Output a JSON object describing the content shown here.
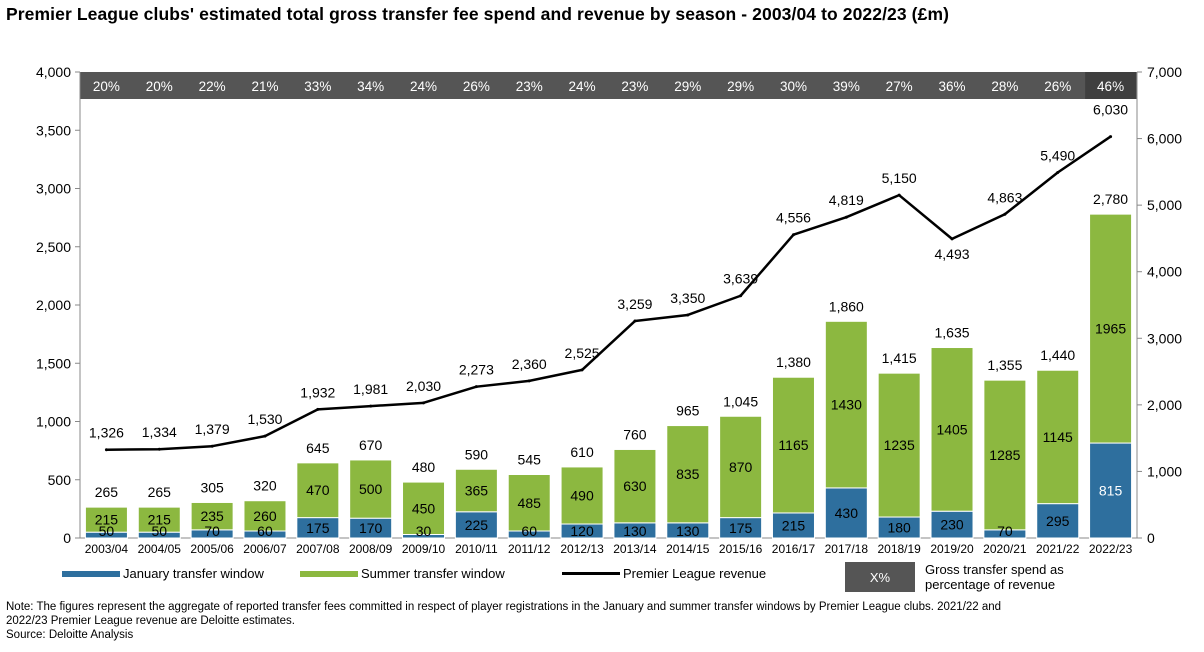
{
  "title": "Premier League clubs' estimated total gross transfer fee spend and revenue by season - 2003/04 to 2022/23 (£m)",
  "colors": {
    "january": "#2e6f9e",
    "summer": "#8cb840",
    "revenue": "#000000",
    "pct_band": "#555555",
    "pct_highlight": "#3f3f3f"
  },
  "chart_data": {
    "type": "bar",
    "stacked": true,
    "categories": [
      "2003/04",
      "2004/05",
      "2005/06",
      "2006/07",
      "2007/08",
      "2008/09",
      "2009/10",
      "2010/11",
      "2011/12",
      "2012/13",
      "2013/14",
      "2014/15",
      "2015/16",
      "2016/17",
      "2017/18",
      "2018/19",
      "2019/20",
      "2020/21",
      "2021/22",
      "2022/23"
    ],
    "series": [
      {
        "name": "January transfer window",
        "axis": "left",
        "values": [
          50,
          50,
          70,
          60,
          175,
          170,
          30,
          225,
          60,
          120,
          130,
          130,
          175,
          215,
          430,
          180,
          230,
          70,
          295,
          815
        ]
      },
      {
        "name": "Summer transfer window",
        "axis": "left",
        "values": [
          215,
          215,
          235,
          260,
          470,
          500,
          450,
          365,
          485,
          490,
          630,
          835,
          870,
          1165,
          1430,
          1235,
          1405,
          1285,
          1145,
          1965
        ]
      },
      {
        "name": "Premier League revenue",
        "type": "line",
        "axis": "right",
        "values": [
          1326,
          1334,
          1379,
          1530,
          1932,
          1981,
          2030,
          2273,
          2360,
          2525,
          3259,
          3350,
          3639,
          4556,
          4819,
          5150,
          4493,
          4863,
          5490,
          6030
        ]
      }
    ],
    "totals": [
      265,
      265,
      305,
      320,
      645,
      670,
      480,
      590,
      545,
      610,
      760,
      965,
      1045,
      1380,
      1860,
      1415,
      1635,
      1355,
      1440,
      2780
    ],
    "pct_of_revenue": [
      "20%",
      "20%",
      "22%",
      "21%",
      "33%",
      "34%",
      "24%",
      "26%",
      "23%",
      "24%",
      "23%",
      "29%",
      "29%",
      "30%",
      "39%",
      "27%",
      "36%",
      "28%",
      "26%",
      "46%"
    ],
    "ylim_left": [
      0,
      4000
    ],
    "yticks_left": [
      "0",
      "500",
      "1,000",
      "1,500",
      "2,000",
      "2,500",
      "3,000",
      "3,500",
      "4,000"
    ],
    "ylim_right": [
      0,
      7000
    ],
    "yticks_right": [
      "0",
      "1,000",
      "2,000",
      "3,000",
      "4,000",
      "5,000",
      "6,000",
      "7,000"
    ],
    "grid": false,
    "legend_position": "bottom"
  },
  "legend": {
    "january": "January transfer window",
    "summer": "Summer transfer window",
    "revenue": "Premier League revenue",
    "pct_swatch": "X%",
    "pct_line1": "Gross transfer spend as",
    "pct_line2": "percentage of revenue"
  },
  "note_line1": "Note: The figures represent the aggregate of reported transfer fees committed in respect of player registrations in the January and summer transfer windows by Premier League clubs. 2021/22 and",
  "note_line2": "2022/23 Premier League revenue are Deloitte estimates.",
  "source": "Source: Deloitte Analysis"
}
